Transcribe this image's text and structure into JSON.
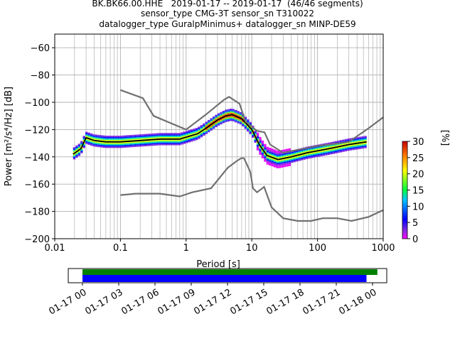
{
  "title": {
    "line1": "BK.BK66.00.HHE   2019-01-17 -- 2019-01-17  (46/46 segments)",
    "line2": "sensor_type CMG-3T sensor_sn T310022",
    "line3": "datalogger_type GuralpMinimus+ datalogger_sn MINP-DE59"
  },
  "chart_data": [
    {
      "type": "heatmap",
      "xlabel": "Period [s]",
      "xscale": "log",
      "xlim": [
        0.01,
        1000
      ],
      "xticks": [
        0.01,
        0.1,
        1,
        10,
        100,
        1000
      ],
      "xtick_labels": [
        "0.01",
        "0.1",
        "1",
        "10",
        "100",
        "1000"
      ],
      "ylim": [
        -200,
        -50
      ],
      "yticks": [
        -60,
        -80,
        -100,
        -120,
        -140,
        -160,
        -180,
        -200
      ],
      "ylabel": "Power [m²/s⁴/Hz] [dB]",
      "grid": true,
      "colorbar": {
        "label": "[%]",
        "range": [
          0,
          30
        ],
        "ticks": [
          "0",
          "5",
          "10",
          "15",
          "20",
          "25",
          "30"
        ]
      },
      "series": [
        {
          "kind": "mode-curve",
          "color": "#000000",
          "points": [
            [
              0.019,
              -138
            ],
            [
              0.025,
              -134
            ],
            [
              0.03,
              -126
            ],
            [
              0.04,
              -128
            ],
            [
              0.06,
              -129
            ],
            [
              0.1,
              -129
            ],
            [
              0.2,
              -128
            ],
            [
              0.4,
              -127
            ],
            [
              0.8,
              -127
            ],
            [
              1.5,
              -123
            ],
            [
              2,
              -119
            ],
            [
              3,
              -113
            ],
            [
              4,
              -110
            ],
            [
              5,
              -109
            ],
            [
              7,
              -112
            ],
            [
              10,
              -120
            ],
            [
              13,
              -131
            ],
            [
              17,
              -139
            ],
            [
              25,
              -142
            ],
            [
              40,
              -140
            ],
            [
              70,
              -137
            ],
            [
              150,
              -134
            ],
            [
              300,
              -131
            ],
            [
              560,
              -129
            ]
          ]
        },
        {
          "kind": "high-noise-model",
          "color": "#707070",
          "points": [
            [
              0.1,
              -91
            ],
            [
              0.22,
              -97
            ],
            [
              0.32,
              -110
            ],
            [
              1,
              -120
            ],
            [
              2,
              -109
            ],
            [
              3.8,
              -98
            ],
            [
              4.5,
              -96
            ],
            [
              6.5,
              -101
            ],
            [
              8,
              -114
            ],
            [
              12,
              -121
            ],
            [
              15.6,
              -122
            ],
            [
              19,
              -131
            ],
            [
              30,
              -137
            ],
            [
              100,
              -132
            ],
            [
              150,
              -131
            ],
            [
              300,
              -129
            ],
            [
              600,
              -119
            ],
            [
              1000,
              -111
            ]
          ]
        },
        {
          "kind": "low-noise-model",
          "color": "#707070",
          "points": [
            [
              0.1,
              -168
            ],
            [
              0.17,
              -167
            ],
            [
              0.4,
              -167
            ],
            [
              0.8,
              -169
            ],
            [
              1.24,
              -166
            ],
            [
              2.4,
              -163
            ],
            [
              4.3,
              -148
            ],
            [
              5.9,
              -143
            ],
            [
              6.9,
              -141
            ],
            [
              7.6,
              -141
            ],
            [
              9.5,
              -151
            ],
            [
              10.4,
              -163
            ],
            [
              12,
              -166
            ],
            [
              15.4,
              -162
            ],
            [
              20,
              -177
            ],
            [
              30,
              -185
            ],
            [
              50,
              -187
            ],
            [
              80,
              -187
            ],
            [
              120,
              -185
            ],
            [
              200,
              -185
            ],
            [
              330,
              -187
            ],
            [
              600,
              -184
            ],
            [
              1000,
              -179
            ]
          ]
        }
      ]
    },
    {
      "type": "timeline",
      "xticks": [
        "01-17 00",
        "01-17 03",
        "01-17 06",
        "01-17 09",
        "01-17 12",
        "01-17 15",
        "01-17 18",
        "01-17 21",
        "01-18 00"
      ],
      "bars": [
        {
          "name": "data-availability",
          "color": "#008000",
          "start_hour": 0,
          "end_hour": 24.4
        },
        {
          "name": "psd-segments",
          "color": "#0000ff",
          "start_hour": 0,
          "end_hour": 23.5
        }
      ]
    }
  ]
}
